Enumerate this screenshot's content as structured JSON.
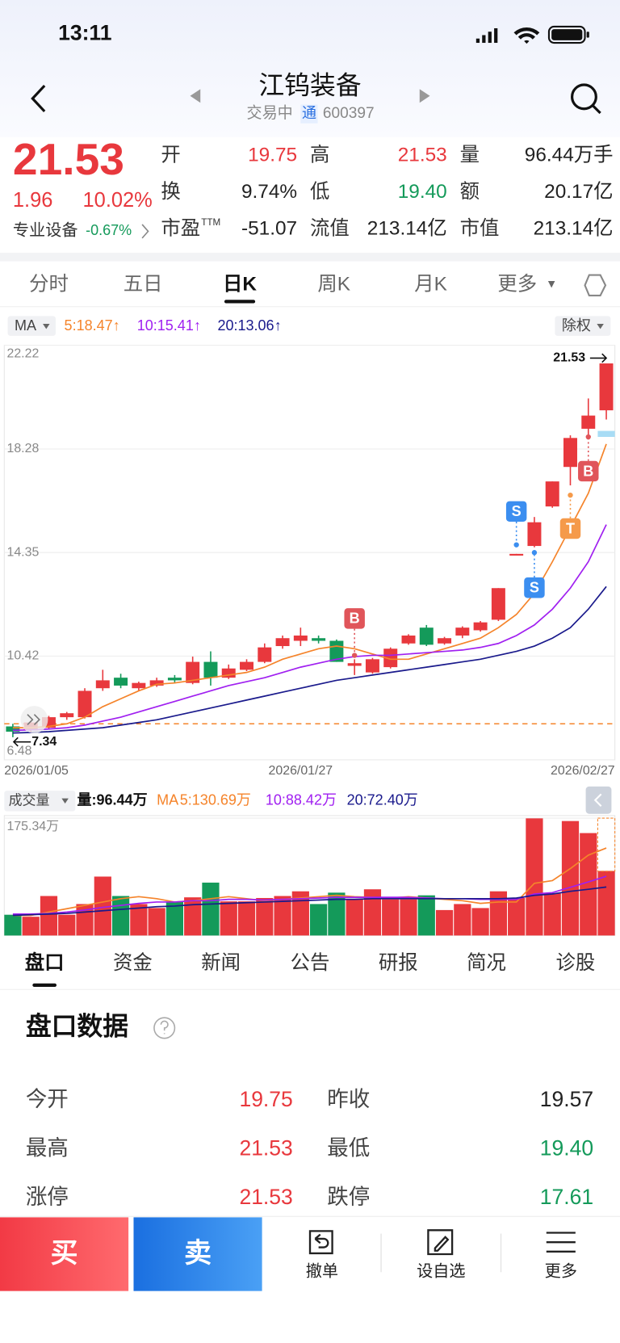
{
  "status": {
    "time": "13:11"
  },
  "header": {
    "title": "江钨装备",
    "state": "交易中",
    "tag": "通",
    "code": "600397"
  },
  "quote": {
    "price": "21.53",
    "change": "1.96",
    "pct": "10.02%",
    "industry": "专业设备",
    "industry_pct": "-0.67%",
    "fields": [
      {
        "label": "开",
        "value": "19.75",
        "color": "#e8383d"
      },
      {
        "label": "高",
        "value": "21.53",
        "color": "#e8383d"
      },
      {
        "label": "量",
        "value": "96.44万手",
        "color": "#222"
      },
      {
        "label": "换",
        "value": "9.74%",
        "color": "#222"
      },
      {
        "label": "低",
        "value": "19.40",
        "color": "#149a5a"
      },
      {
        "label": "额",
        "value": "20.17亿",
        "color": "#222"
      },
      {
        "label": "市盈",
        "sup": "TTM",
        "value": "-51.07",
        "color": "#222"
      },
      {
        "label": "流值",
        "value": "213.14亿",
        "color": "#222"
      },
      {
        "label": "市值",
        "value": "213.14亿",
        "color": "#222"
      }
    ]
  },
  "tabs": {
    "items": [
      "分时",
      "五日",
      "日K",
      "周K",
      "月K",
      "更多"
    ],
    "active": 2
  },
  "chart_data": [
    {
      "type": "candlestick",
      "indicator": "MA",
      "adjust": "除权",
      "categories": [
        "2026/01/05",
        null,
        null,
        null,
        null,
        null,
        null,
        null,
        null,
        null,
        null,
        null,
        null,
        null,
        null,
        null,
        "2026/01/27",
        null,
        null,
        null,
        null,
        null,
        null,
        null,
        null,
        null,
        null,
        null,
        null,
        null,
        null,
        null,
        null,
        "2026/02/27"
      ],
      "open": [
        7.75,
        7.6,
        7.7,
        8.1,
        8.1,
        9.2,
        9.6,
        9.2,
        9.3,
        9.6,
        9.4,
        10.2,
        9.6,
        9.9,
        10.2,
        10.8,
        11.0,
        11.1,
        11.0,
        10.05,
        9.8,
        10.0,
        10.9,
        11.5,
        10.9,
        11.2,
        11.4,
        11.8,
        14.25,
        14.6,
        16.1,
        17.6,
        19.05,
        19.75
      ],
      "high": [
        7.85,
        7.95,
        8.15,
        8.3,
        9.2,
        9.9,
        9.75,
        9.45,
        9.6,
        9.7,
        10.4,
        10.6,
        10.1,
        10.3,
        10.9,
        11.2,
        11.5,
        11.2,
        11.05,
        10.3,
        10.35,
        10.75,
        11.25,
        11.6,
        11.15,
        11.55,
        11.75,
        13.0,
        14.3,
        15.7,
        17.05,
        18.8,
        20.2,
        21.53
      ],
      "low": [
        7.34,
        7.5,
        7.65,
        8.0,
        8.05,
        9.1,
        9.2,
        9.1,
        9.25,
        9.4,
        9.35,
        9.3,
        9.55,
        9.85,
        10.15,
        10.7,
        10.8,
        10.9,
        10.2,
        9.7,
        9.75,
        9.95,
        10.85,
        10.8,
        10.85,
        11.1,
        11.35,
        11.75,
        14.25,
        14.55,
        16.05,
        16.9,
        18.7,
        19.4
      ],
      "close": [
        7.55,
        7.9,
        8.1,
        8.25,
        9.1,
        9.5,
        9.3,
        9.4,
        9.5,
        9.5,
        10.2,
        9.6,
        9.95,
        10.2,
        10.75,
        11.1,
        11.2,
        11.0,
        10.2,
        10.15,
        10.3,
        10.7,
        11.2,
        10.85,
        11.1,
        11.5,
        11.7,
        13.0,
        14.3,
        15.5,
        17.05,
        18.7,
        19.55,
        21.53
      ],
      "up_color": "#e8383d",
      "down_color": "#149a5a",
      "series": [
        {
          "name": "5:18.47↑",
          "color": "#f5842b",
          "values": [
            7.7,
            7.7,
            7.75,
            7.85,
            8.1,
            8.5,
            8.8,
            9.1,
            9.35,
            9.4,
            9.5,
            9.6,
            9.7,
            9.8,
            10.0,
            10.3,
            10.5,
            10.7,
            10.8,
            10.7,
            10.5,
            10.3,
            10.3,
            10.5,
            10.7,
            10.9,
            11.1,
            11.5,
            12.0,
            12.8,
            14.0,
            15.3,
            16.6,
            18.47
          ]
        },
        {
          "name": "10:15.41↑",
          "color": "#a020f0",
          "values": [
            7.6,
            7.62,
            7.65,
            7.7,
            7.8,
            7.95,
            8.1,
            8.3,
            8.5,
            8.7,
            8.9,
            9.1,
            9.3,
            9.45,
            9.6,
            9.8,
            10.0,
            10.15,
            10.3,
            10.4,
            10.45,
            10.45,
            10.5,
            10.55,
            10.6,
            10.65,
            10.75,
            10.9,
            11.2,
            11.6,
            12.2,
            13.0,
            14.0,
            15.41
          ]
        },
        {
          "name": "20:13.06↑",
          "color": "#1a1a8c",
          "values": [
            7.5,
            7.52,
            7.55,
            7.6,
            7.65,
            7.7,
            7.8,
            7.9,
            8.0,
            8.15,
            8.3,
            8.45,
            8.6,
            8.75,
            8.9,
            9.05,
            9.2,
            9.35,
            9.5,
            9.6,
            9.7,
            9.8,
            9.9,
            10.0,
            10.1,
            10.2,
            10.3,
            10.45,
            10.6,
            10.8,
            11.1,
            11.5,
            12.2,
            13.06
          ]
        }
      ],
      "ylim": [
        6.48,
        22.22
      ],
      "yticks": [
        22.22,
        18.28,
        14.35,
        10.42,
        6.48
      ],
      "grid": true,
      "reference_line": 7.85,
      "high_label": "21.53",
      "low_label": "7.34",
      "signals": [
        "B",
        "S",
        "S",
        "T",
        "B"
      ]
    },
    {
      "type": "bar",
      "title": "成交量",
      "current": "量:96.44万",
      "indicator": "MA",
      "values": [
        31,
        28,
        59,
        31,
        47,
        88,
        59,
        47,
        41,
        50,
        57,
        79,
        51,
        51,
        56,
        59,
        66,
        47,
        64,
        54,
        69,
        54,
        54,
        60,
        38,
        47,
        41,
        66,
        56,
        175,
        63,
        171,
        153,
        96.44
      ],
      "series": [
        {
          "name": "5:130.69万",
          "color": "#f5842b",
          "values": [
            30,
            30,
            35,
            40,
            45,
            50,
            55,
            58,
            55,
            50,
            52,
            55,
            58,
            55,
            52,
            54,
            56,
            58,
            60,
            58,
            57,
            56,
            58,
            56,
            54,
            52,
            48,
            50,
            50,
            78,
            82,
            100,
            120,
            130.69
          ]
        },
        {
          "name": "10:88.42万",
          "color": "#a020f0",
          "values": [
            32,
            32,
            33,
            35,
            38,
            42,
            45,
            48,
            50,
            50,
            52,
            52,
            54,
            54,
            53,
            54,
            55,
            56,
            57,
            57,
            57,
            57,
            57,
            56,
            55,
            55,
            54,
            54,
            54,
            62,
            64,
            72,
            80,
            88.42
          ]
        },
        {
          "name": "20:72.40万",
          "color": "#1a1a8c",
          "values": [
            30,
            31,
            32,
            33,
            35,
            37,
            39,
            41,
            43,
            44,
            46,
            47,
            48,
            49,
            50,
            51,
            52,
            53,
            54,
            54,
            55,
            55,
            55,
            55,
            55,
            55,
            55,
            55,
            56,
            60,
            62,
            66,
            69,
            72.4
          ]
        }
      ],
      "ylim": [
        0,
        175.34
      ],
      "yticks": [
        {
          "value": 175.34,
          "label": "175.34万"
        }
      ]
    }
  ],
  "info_tabs": {
    "items": [
      "盘口",
      "资金",
      "新闻",
      "公告",
      "研报",
      "简况",
      "诊股"
    ],
    "active": 0
  },
  "panel": {
    "title": "盘口数据",
    "rows": [
      [
        {
          "label": "今开",
          "value": "19.75",
          "color": "#e8383d"
        },
        {
          "label": "昨收",
          "value": "19.57",
          "color": "#222"
        }
      ],
      [
        {
          "label": "最高",
          "value": "21.53",
          "color": "#e8383d"
        },
        {
          "label": "最低",
          "value": "19.40",
          "color": "#149a5a"
        }
      ],
      [
        {
          "label": "涨停",
          "value": "21.53",
          "color": "#e8383d"
        },
        {
          "label": "跌停",
          "value": "17.61",
          "color": "#149a5a"
        }
      ]
    ]
  },
  "actions": {
    "buy": "买",
    "sell": "卖",
    "items": [
      "撤单",
      "设自选",
      "更多"
    ]
  }
}
